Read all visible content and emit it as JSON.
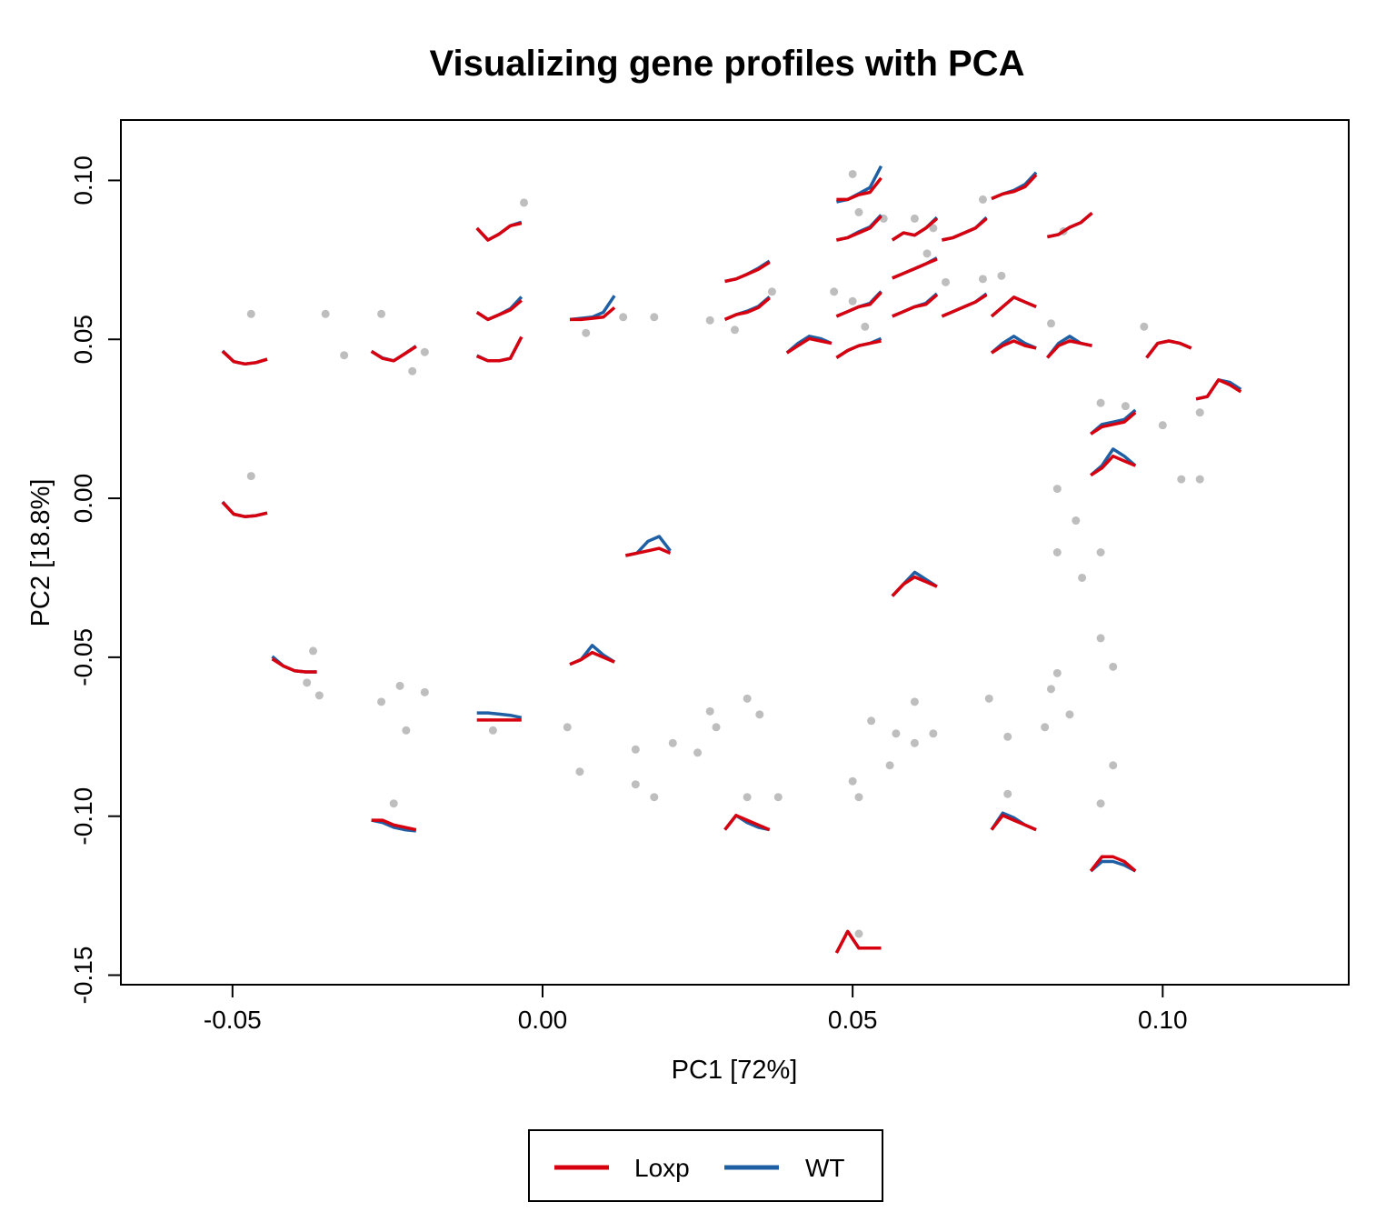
{
  "chart_data": {
    "type": "scatter",
    "title": "Visualizing gene profiles with PCA",
    "xlabel": "PC1 [72%]",
    "ylabel": "PC2 [18.8%]",
    "xlim": [
      -0.068,
      0.13
    ],
    "ylim": [
      -0.153,
      0.119
    ],
    "xticks": [
      -0.05,
      0.0,
      0.05,
      0.1
    ],
    "xtick_labels": [
      "-0.05",
      "0.00",
      "0.05",
      "0.10"
    ],
    "yticks": [
      -0.15,
      -0.1,
      -0.05,
      0.0,
      0.05,
      0.1
    ],
    "ytick_labels": [
      "-0.15",
      "-0.10",
      "-0.05",
      "0.00",
      "0.05",
      "0.10"
    ],
    "grid": false,
    "point_color": "#BEBEBE",
    "legend": {
      "placement": "bottom-center",
      "entries": [
        {
          "name": "Loxp",
          "color": "#D7000F"
        },
        {
          "name": "WT",
          "color": "#1F5FA3"
        }
      ]
    },
    "glyphs": [
      {
        "x": -0.048,
        "y": 0.046,
        "loxp": [
          0.53,
          0.1,
          0.0,
          0.06,
          0.2
        ],
        "wt": [
          0.55,
          0.1,
          0.0,
          0.06,
          0.2
        ]
      },
      {
        "x": -0.048,
        "y": -0.002,
        "loxp": [
          0.6,
          0.1,
          0.0,
          0.04,
          0.15
        ],
        "wt": [
          0.62,
          0.1,
          0.0,
          0.04,
          0.15
        ]
      },
      {
        "x": -0.024,
        "y": 0.047,
        "loxp": [
          0.4,
          0.1,
          0.0,
          0.3,
          0.6
        ],
        "wt": [
          0.4,
          0.12,
          0.0,
          0.3,
          0.62
        ]
      },
      {
        "x": -0.007,
        "y": 0.085,
        "loxp": [
          0.5,
          0.0,
          0.25,
          0.6,
          0.7
        ],
        "wt": [
          0.5,
          0.0,
          0.25,
          0.6,
          0.75
        ]
      },
      {
        "x": -0.007,
        "y": 0.06,
        "loxp": [
          0.3,
          0.0,
          0.2,
          0.4,
          0.8
        ],
        "wt": [
          0.3,
          0.0,
          0.2,
          0.45,
          0.95
        ]
      },
      {
        "x": -0.007,
        "y": 0.047,
        "loxp": [
          0.2,
          0.0,
          0.0,
          0.1,
          1.0
        ],
        "wt": [
          0.22,
          0.0,
          0.0,
          0.1,
          1.0
        ]
      },
      {
        "x": 0.008,
        "y": 0.06,
        "loxp": [
          0.0,
          0.0,
          0.05,
          0.1,
          0.5
        ],
        "wt": [
          0.0,
          0.05,
          0.1,
          0.3,
          1.0
        ]
      },
      {
        "x": 0.033,
        "y": 0.072,
        "loxp": [
          0.0,
          0.1,
          0.3,
          0.5,
          0.8
        ],
        "wt": [
          0.0,
          0.1,
          0.3,
          0.55,
          0.85
        ]
      },
      {
        "x": 0.033,
        "y": 0.06,
        "loxp": [
          0.0,
          0.2,
          0.3,
          0.5,
          0.9
        ],
        "wt": [
          0.0,
          0.2,
          0.35,
          0.55,
          0.95
        ]
      },
      {
        "x": 0.051,
        "y": 0.097,
        "loxp": [
          0.1,
          0.1,
          0.3,
          0.4,
          1.0
        ],
        "wt": [
          0.0,
          0.1,
          0.35,
          0.6,
          1.5
        ]
      },
      {
        "x": 0.051,
        "y": 0.085,
        "loxp": [
          0.0,
          0.1,
          0.3,
          0.5,
          1.0
        ],
        "wt": [
          0.0,
          0.1,
          0.35,
          0.55,
          1.05
        ]
      },
      {
        "x": 0.06,
        "y": 0.085,
        "loxp": [
          0.0,
          0.3,
          0.2,
          0.5,
          0.9
        ],
        "wt": [
          0.0,
          0.3,
          0.2,
          0.5,
          0.95
        ]
      },
      {
        "x": 0.06,
        "y": 0.073,
        "loxp": [
          0.0,
          0.2,
          0.4,
          0.6,
          0.8
        ],
        "wt": [
          0.0,
          0.2,
          0.4,
          0.6,
          0.85
        ]
      },
      {
        "x": 0.068,
        "y": 0.085,
        "loxp": [
          0.0,
          0.1,
          0.3,
          0.5,
          0.9
        ],
        "wt": [
          0.0,
          0.1,
          0.3,
          0.5,
          0.95
        ]
      },
      {
        "x": 0.076,
        "y": 0.098,
        "loxp": [
          0.0,
          0.2,
          0.3,
          0.5,
          1.0
        ],
        "wt": [
          0.0,
          0.2,
          0.35,
          0.6,
          1.1
        ]
      },
      {
        "x": 0.085,
        "y": 0.086,
        "loxp": [
          0.0,
          0.1,
          0.4,
          0.6,
          1.0
        ],
        "wt": [
          0.0,
          0.1,
          0.4,
          0.6,
          1.0
        ]
      },
      {
        "x": 0.051,
        "y": 0.061,
        "loxp": [
          0.0,
          0.2,
          0.4,
          0.5,
          1.0
        ],
        "wt": [
          0.0,
          0.2,
          0.4,
          0.55,
          1.05
        ]
      },
      {
        "x": 0.06,
        "y": 0.061,
        "loxp": [
          0.0,
          0.2,
          0.4,
          0.5,
          0.9
        ],
        "wt": [
          0.0,
          0.2,
          0.4,
          0.55,
          0.95
        ]
      },
      {
        "x": 0.068,
        "y": 0.061,
        "loxp": [
          0.0,
          0.2,
          0.4,
          0.6,
          0.9
        ],
        "wt": [
          0.0,
          0.2,
          0.4,
          0.6,
          0.95
        ]
      },
      {
        "x": 0.076,
        "y": 0.061,
        "loxp": [
          0.0,
          0.4,
          0.8,
          0.6,
          0.4
        ],
        "wt": [
          0.0,
          0.4,
          0.8,
          0.6,
          0.4
        ]
      },
      {
        "x": 0.043,
        "y": 0.048,
        "loxp": [
          0.2,
          0.5,
          0.8,
          0.7,
          0.6
        ],
        "wt": [
          0.2,
          0.6,
          0.9,
          0.8,
          0.6
        ]
      },
      {
        "x": 0.051,
        "y": 0.048,
        "loxp": [
          0.0,
          0.3,
          0.5,
          0.6,
          0.7
        ],
        "wt": [
          0.0,
          0.3,
          0.5,
          0.6,
          0.8
        ]
      },
      {
        "x": 0.076,
        "y": 0.048,
        "loxp": [
          0.2,
          0.5,
          0.7,
          0.5,
          0.4
        ],
        "wt": [
          0.2,
          0.6,
          0.9,
          0.6,
          0.4
        ]
      },
      {
        "x": 0.085,
        "y": 0.048,
        "loxp": [
          0.0,
          0.5,
          0.7,
          0.6,
          0.5
        ],
        "wt": [
          0.0,
          0.6,
          0.9,
          0.6,
          0.5
        ]
      },
      {
        "x": 0.101,
        "y": 0.048,
        "loxp": [
          0.0,
          0.6,
          0.7,
          0.6,
          0.4
        ],
        "wt": [
          0.0,
          0.6,
          0.7,
          0.6,
          0.4
        ]
      },
      {
        "x": 0.109,
        "y": 0.035,
        "loxp": [
          0.0,
          0.1,
          0.8,
          0.6,
          0.3
        ],
        "wt": [
          0.0,
          0.1,
          0.8,
          0.7,
          0.4
        ]
      },
      {
        "x": 0.092,
        "y": 0.024,
        "loxp": [
          0.0,
          0.3,
          0.4,
          0.5,
          0.9
        ],
        "wt": [
          0.0,
          0.4,
          0.5,
          0.6,
          1.0
        ]
      },
      {
        "x": 0.092,
        "y": 0.011,
        "loxp": [
          0.0,
          0.3,
          0.8,
          0.6,
          0.4
        ],
        "wt": [
          0.0,
          0.4,
          1.1,
          0.8,
          0.4
        ]
      },
      {
        "x": 0.06,
        "y": -0.027,
        "loxp": [
          0.0,
          0.5,
          0.8,
          0.6,
          0.4
        ],
        "wt": [
          0.0,
          0.5,
          1.0,
          0.7,
          0.4
        ]
      },
      {
        "x": 0.017,
        "y": -0.015,
        "loxp": [
          0.1,
          0.2,
          0.3,
          0.4,
          0.2
        ],
        "wt": [
          0.1,
          0.2,
          0.7,
          0.9,
          0.3
        ]
      },
      {
        "x": 0.008,
        "y": -0.05,
        "loxp": [
          0.2,
          0.4,
          0.7,
          0.5,
          0.3
        ],
        "wt": [
          0.2,
          0.4,
          1.0,
          0.6,
          0.3
        ]
      },
      {
        "x": -0.04,
        "y": -0.052,
        "loxp": [
          0.7,
          0.4,
          0.2,
          0.15,
          0.15
        ],
        "wt": [
          0.8,
          0.4,
          0.2,
          0.15,
          0.15
        ]
      },
      {
        "x": -0.007,
        "y": -0.066,
        "loxp": [
          0.0,
          0.0,
          0.0,
          0.0,
          0.0
        ],
        "wt": [
          0.3,
          0.3,
          0.25,
          0.2,
          0.1
        ]
      },
      {
        "x": -0.024,
        "y": -0.102,
        "loxp": [
          0.6,
          0.6,
          0.4,
          0.3,
          0.2
        ],
        "wt": [
          0.6,
          0.5,
          0.3,
          0.2,
          0.15
        ]
      },
      {
        "x": 0.033,
        "y": -0.102,
        "loxp": [
          0.2,
          0.8,
          0.6,
          0.4,
          0.2
        ],
        "wt": [
          0.2,
          0.8,
          0.5,
          0.3,
          0.2
        ]
      },
      {
        "x": 0.076,
        "y": -0.102,
        "loxp": [
          0.2,
          0.8,
          0.6,
          0.4,
          0.2
        ],
        "wt": [
          0.2,
          0.9,
          0.7,
          0.4,
          0.2
        ]
      },
      {
        "x": 0.092,
        "y": -0.115,
        "loxp": [
          0.2,
          0.8,
          0.8,
          0.6,
          0.2
        ],
        "wt": [
          0.2,
          0.6,
          0.6,
          0.45,
          0.2
        ]
      },
      {
        "x": 0.051,
        "y": -0.14,
        "loxp": [
          0.1,
          1.0,
          0.3,
          0.3,
          0.3
        ],
        "wt": [
          0.1,
          1.0,
          0.3,
          0.3,
          0.3
        ]
      }
    ],
    "points": [
      [
        -0.047,
        0.058
      ],
      [
        -0.047,
        0.007
      ],
      [
        -0.035,
        0.058
      ],
      [
        -0.032,
        0.045
      ],
      [
        -0.026,
        0.058
      ],
      [
        -0.021,
        0.04
      ],
      [
        -0.019,
        0.046
      ],
      [
        -0.003,
        0.093
      ],
      [
        0.007,
        0.052
      ],
      [
        0.013,
        0.057
      ],
      [
        0.018,
        0.057
      ],
      [
        0.027,
        0.056
      ],
      [
        0.031,
        0.053
      ],
      [
        0.037,
        0.065
      ],
      [
        0.05,
        0.102
      ],
      [
        0.051,
        0.09
      ],
      [
        0.055,
        0.088
      ],
      [
        0.06,
        0.088
      ],
      [
        0.063,
        0.085
      ],
      [
        0.071,
        0.094
      ],
      [
        0.084,
        0.084
      ],
      [
        0.074,
        0.07
      ],
      [
        0.071,
        0.069
      ],
      [
        0.065,
        0.068
      ],
      [
        0.062,
        0.077
      ],
      [
        0.047,
        0.065
      ],
      [
        0.05,
        0.062
      ],
      [
        0.052,
        0.054
      ],
      [
        0.082,
        0.055
      ],
      [
        0.085,
        0.05
      ],
      [
        0.097,
        0.054
      ],
      [
        0.106,
        0.027
      ],
      [
        0.09,
        0.03
      ],
      [
        0.094,
        0.029
      ],
      [
        0.1,
        0.023
      ],
      [
        0.106,
        0.006
      ],
      [
        0.103,
        0.006
      ],
      [
        0.083,
        0.003
      ],
      [
        0.086,
        -0.007
      ],
      [
        0.09,
        -0.017
      ],
      [
        0.083,
        -0.017
      ],
      [
        0.087,
        -0.025
      ],
      [
        0.09,
        -0.044
      ],
      [
        0.092,
        -0.053
      ],
      [
        0.083,
        -0.055
      ],
      [
        0.082,
        -0.06
      ],
      [
        0.085,
        -0.068
      ],
      [
        0.081,
        -0.072
      ],
      [
        0.075,
        -0.075
      ],
      [
        0.072,
        -0.063
      ],
      [
        0.063,
        -0.074
      ],
      [
        0.06,
        -0.077
      ],
      [
        0.057,
        -0.074
      ],
      [
        0.053,
        -0.07
      ],
      [
        0.06,
        -0.064
      ],
      [
        0.051,
        -0.094
      ],
      [
        0.056,
        -0.084
      ],
      [
        0.075,
        -0.093
      ],
      [
        0.092,
        -0.084
      ],
      [
        0.09,
        -0.096
      ],
      [
        0.051,
        -0.137
      ],
      [
        0.05,
        -0.089
      ],
      [
        0.033,
        -0.094
      ],
      [
        0.038,
        -0.094
      ],
      [
        0.027,
        -0.067
      ],
      [
        0.033,
        -0.063
      ],
      [
        0.035,
        -0.068
      ],
      [
        0.015,
        -0.09
      ],
      [
        0.018,
        -0.094
      ],
      [
        0.006,
        -0.086
      ],
      [
        -0.024,
        -0.096
      ],
      [
        -0.022,
        -0.073
      ],
      [
        -0.023,
        -0.059
      ],
      [
        -0.026,
        -0.064
      ],
      [
        -0.036,
        -0.062
      ],
      [
        -0.038,
        -0.058
      ],
      [
        -0.037,
        -0.048
      ],
      [
        -0.019,
        -0.061
      ],
      [
        -0.008,
        -0.073
      ],
      [
        0.004,
        -0.072
      ],
      [
        0.015,
        -0.079
      ],
      [
        0.021,
        -0.077
      ],
      [
        0.025,
        -0.08
      ],
      [
        0.028,
        -0.072
      ]
    ]
  }
}
